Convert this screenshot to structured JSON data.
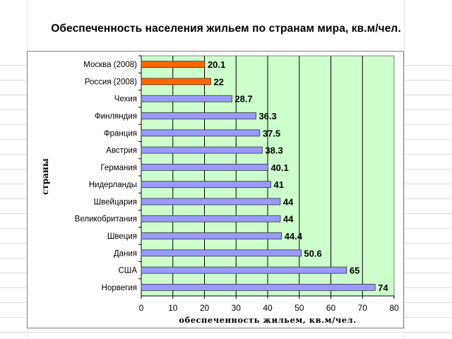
{
  "chart_data": {
    "type": "bar",
    "orientation": "horizontal",
    "title": "Обеспеченность населения жильем по странам мира, кв.м/чел.",
    "xlabel": "обеспеченность жильем, кв.м/чел.",
    "ylabel": "страны",
    "xlim": [
      0,
      80
    ],
    "xticks": [
      "0",
      "10",
      "20",
      "30",
      "40",
      "50",
      "60",
      "70",
      "80"
    ],
    "grid": "vertical",
    "plot_background": "#ccffcc",
    "categories": [
      "Москва (2008)",
      "Россия (2008)",
      "Чехия",
      "Финляндия",
      "Франция",
      "Австрия",
      "Германия",
      "Нидерланды",
      "Швейцария",
      "Великобритания",
      "Швеция",
      "Дания",
      "США",
      "Норвегия"
    ],
    "values": [
      20.1,
      22,
      28.7,
      36.3,
      37.5,
      38.3,
      40.1,
      41,
      44,
      44,
      44.4,
      50.6,
      65,
      74
    ],
    "value_labels": [
      "20.1",
      "22",
      "28.7",
      "36.3",
      "37.5",
      "38.3",
      "40.1",
      "41",
      "44",
      "44",
      "44.4",
      "50.6",
      "65",
      "74"
    ],
    "bar_colors": [
      "#ff6600",
      "#ff6600",
      "#9999ff",
      "#9999ff",
      "#9999ff",
      "#9999ff",
      "#9999ff",
      "#9999ff",
      "#9999ff",
      "#9999ff",
      "#9999ff",
      "#9999ff",
      "#9999ff",
      "#9999ff"
    ]
  }
}
